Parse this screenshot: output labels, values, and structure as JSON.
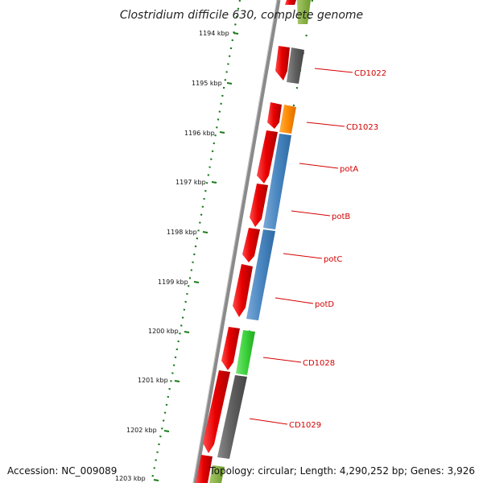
{
  "title": "Clostridium difficile 630, complete genome",
  "accession_text": "Accession: NC_009089",
  "topology_text": "Topology: circular; Length: 4,290,252 bp; Genes: 3,926",
  "ticks": [
    "1194 kbp",
    "1195 kbp",
    "1196 kbp",
    "1197 kbp",
    "1198 kbp",
    "1199 kbp",
    "1200 kbp",
    "1201 kbp",
    "1202 kbp",
    "1203 kbp"
  ],
  "gene_labels": [
    "CD1022",
    "CD1023",
    "potA",
    "potB",
    "potC",
    "potD",
    "CD1028",
    "CD1029"
  ],
  "colors": {
    "forward_strand": "#e80000",
    "cog_gray": "#5f5f5f",
    "cog_orange": "#ff8a00",
    "cog_blue": "#4a86c0",
    "cog_green": "#3bd33b",
    "tick_dots": "#1a7a1a",
    "label_red": "#d40000"
  }
}
